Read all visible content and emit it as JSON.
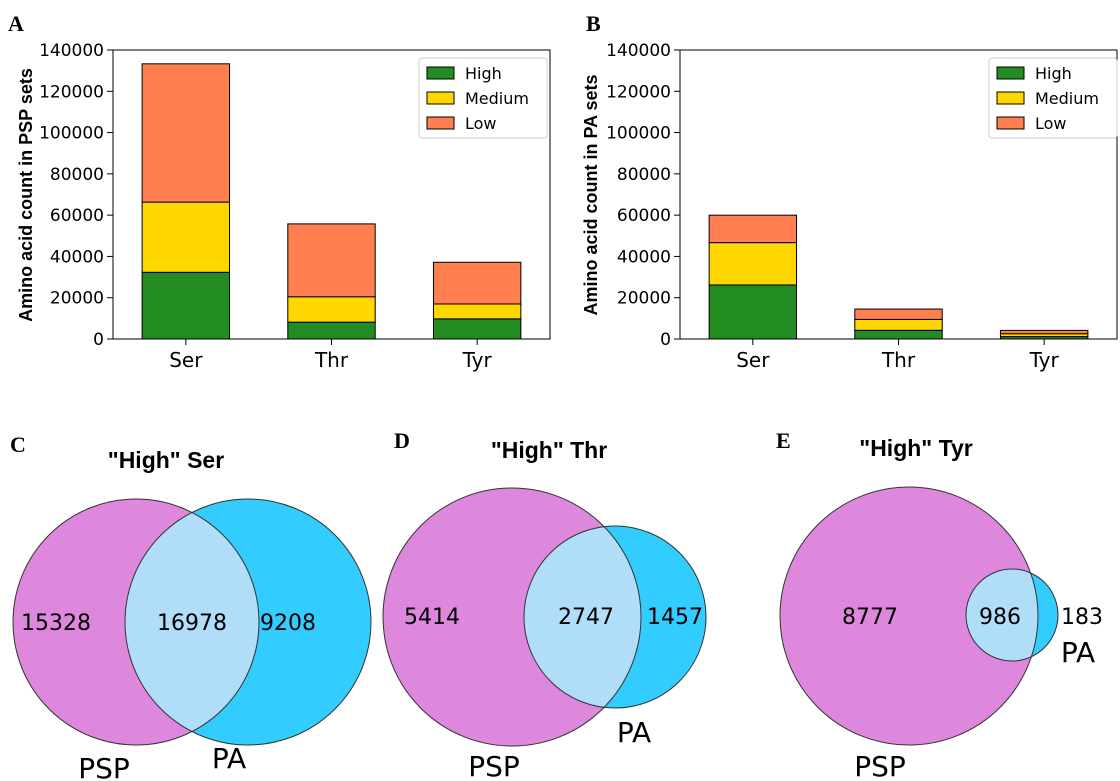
{
  "chart_data": [
    {
      "panel": "A",
      "type": "bar",
      "stacked": true,
      "ylabel": "Amino acid count in PSP sets",
      "ylim": [
        0,
        140000
      ],
      "yticks": [
        "0",
        "20000",
        "40000",
        "60000",
        "80000",
        "100000",
        "120000",
        "140000"
      ],
      "ytick_values": [
        0,
        20000,
        40000,
        60000,
        80000,
        100000,
        120000,
        140000
      ],
      "categories": [
        "Ser",
        "Thr",
        "Tyr"
      ],
      "series": [
        {
          "name": "High",
          "color": "#228b22",
          "values": [
            32306,
            8161,
            9763
          ]
        },
        {
          "name": "Medium",
          "color": "#ffd700",
          "values": [
            34000,
            12300,
            7200
          ]
        },
        {
          "name": "Low",
          "color": "#ff7f50",
          "values": [
            67000,
            35300,
            20200
          ]
        }
      ],
      "legend": "top-right",
      "grid": false
    },
    {
      "panel": "B",
      "type": "bar",
      "stacked": true,
      "ylabel": "Amino acid count in PA sets",
      "ylim": [
        0,
        140000
      ],
      "yticks": [
        "0",
        "20000",
        "40000",
        "60000",
        "80000",
        "100000",
        "120000",
        "140000"
      ],
      "ytick_values": [
        0,
        20000,
        40000,
        60000,
        80000,
        100000,
        120000,
        140000
      ],
      "categories": [
        "Ser",
        "Thr",
        "Tyr"
      ],
      "series": [
        {
          "name": "High",
          "color": "#228b22",
          "values": [
            26186,
            4204,
            1169
          ]
        },
        {
          "name": "Medium",
          "color": "#ffd700",
          "values": [
            20500,
            5300,
            1400
          ]
        },
        {
          "name": "Low",
          "color": "#ff7f50",
          "values": [
            13300,
            5000,
            1600
          ]
        }
      ],
      "legend": "top-right",
      "grid": false
    },
    {
      "panel": "C",
      "type": "venn",
      "title": "\"High\" Ser",
      "sets": [
        "PSP",
        "PA"
      ],
      "only_left": "15328",
      "intersection": "16978",
      "only_right": "9208",
      "colors": {
        "left": "#dd88dd",
        "right": "#33ccff",
        "overlap": "#b0ddf8"
      }
    },
    {
      "panel": "D",
      "type": "venn",
      "title": "\"High\" Thr",
      "sets": [
        "PSP",
        "PA"
      ],
      "only_left": "5414",
      "intersection": "2747",
      "only_right": "1457",
      "colors": {
        "left": "#dd88dd",
        "right": "#33ccff",
        "overlap": "#b0ddf8"
      }
    },
    {
      "panel": "E",
      "type": "venn",
      "title": "\"High\" Tyr",
      "sets": [
        "PSP",
        "PA"
      ],
      "only_left": "8777",
      "intersection": "986",
      "only_right": "183",
      "colors": {
        "left": "#dd88dd",
        "right": "#33ccff",
        "overlap": "#b0ddf8"
      }
    }
  ]
}
